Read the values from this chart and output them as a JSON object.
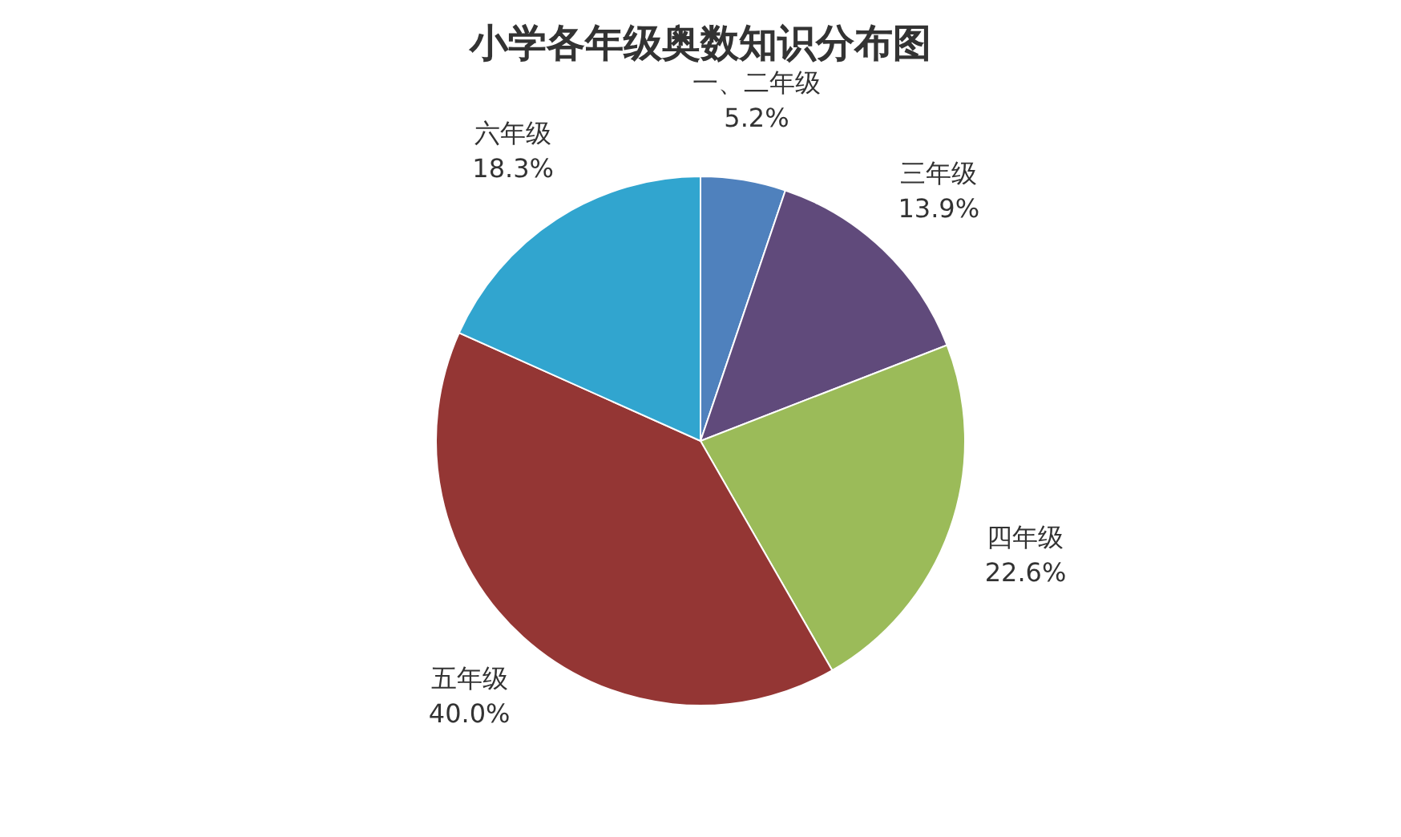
{
  "chart_data": {
    "type": "pie",
    "title": "小学各年级奥数知识分布图",
    "categories": [
      "一、二年级",
      "三年级",
      "四年级",
      "五年级",
      "六年级"
    ],
    "values": [
      5.2,
      13.9,
      22.6,
      40.0,
      18.3
    ],
    "value_labels": [
      "5.2%",
      "13.9%",
      "22.6%",
      "40.0%",
      "18.3%"
    ],
    "colors": [
      "#4f81bd",
      "#604a7b",
      "#9bbb59",
      "#943634",
      "#31a5cf"
    ],
    "legend": false
  }
}
